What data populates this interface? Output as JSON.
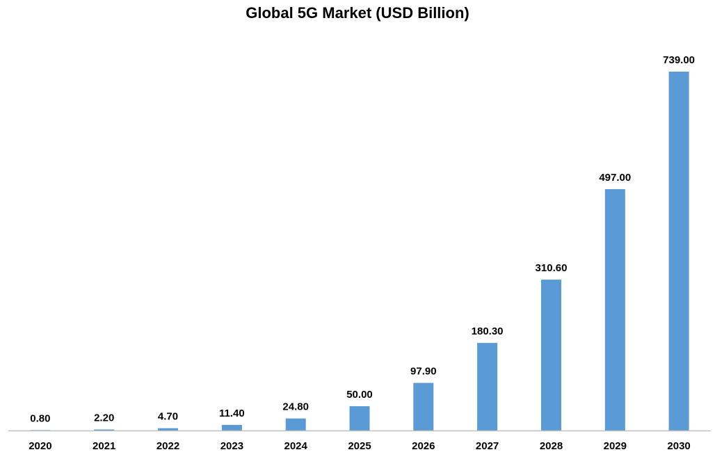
{
  "chart_data": {
    "type": "bar",
    "title": "Global 5G Market (USD Billion)",
    "xlabel": "",
    "ylabel": "",
    "categories": [
      "2020",
      "2021",
      "2022",
      "2023",
      "2024",
      "2025",
      "2026",
      "2027",
      "2028",
      "2029",
      "2030"
    ],
    "values": [
      0.8,
      2.2,
      4.7,
      11.4,
      24.8,
      50.0,
      97.9,
      180.3,
      310.6,
      497.0,
      739.0
    ],
    "data_labels": [
      "0.80",
      "2.20",
      "4.70",
      "11.40",
      "24.80",
      "50.00",
      "97.90",
      "180.30",
      "310.60",
      "497.00",
      "739.00"
    ],
    "ylim": [
      0,
      739
    ],
    "grid": false,
    "legend": "none",
    "colors": {
      "bar": "#5b9bd5",
      "axis": "#bfbfbf",
      "text": "#000000"
    }
  }
}
